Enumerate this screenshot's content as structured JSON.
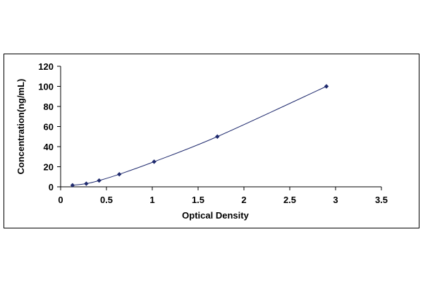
{
  "chart_data": {
    "type": "scatter",
    "title": "",
    "xlabel": "Optical Density",
    "ylabel": "Concentration(ng/mL)",
    "xlim": [
      0,
      3.5
    ],
    "ylim": [
      0,
      120
    ],
    "xticks": [
      0,
      0.5,
      1,
      1.5,
      2,
      2.5,
      3,
      3.5
    ],
    "yticks": [
      0,
      20,
      40,
      60,
      80,
      100,
      120
    ],
    "xtick_labels": [
      "0",
      "0.5",
      "1",
      "1.5",
      "2",
      "2.5",
      "3",
      "3.5"
    ],
    "ytick_labels": [
      "0",
      "20",
      "40",
      "60",
      "80",
      "100",
      "120"
    ],
    "grid": false,
    "legend": "none",
    "marker_color": "#1f2a6e",
    "line_color": "#1f2a6e",
    "series": [
      {
        "x": [
          0.13,
          0.28,
          0.42,
          0.64,
          1.02,
          1.71,
          2.9
        ],
        "y": [
          1.56,
          3.12,
          6.25,
          12.5,
          25,
          50,
          100
        ],
        "trendline": true
      }
    ]
  }
}
